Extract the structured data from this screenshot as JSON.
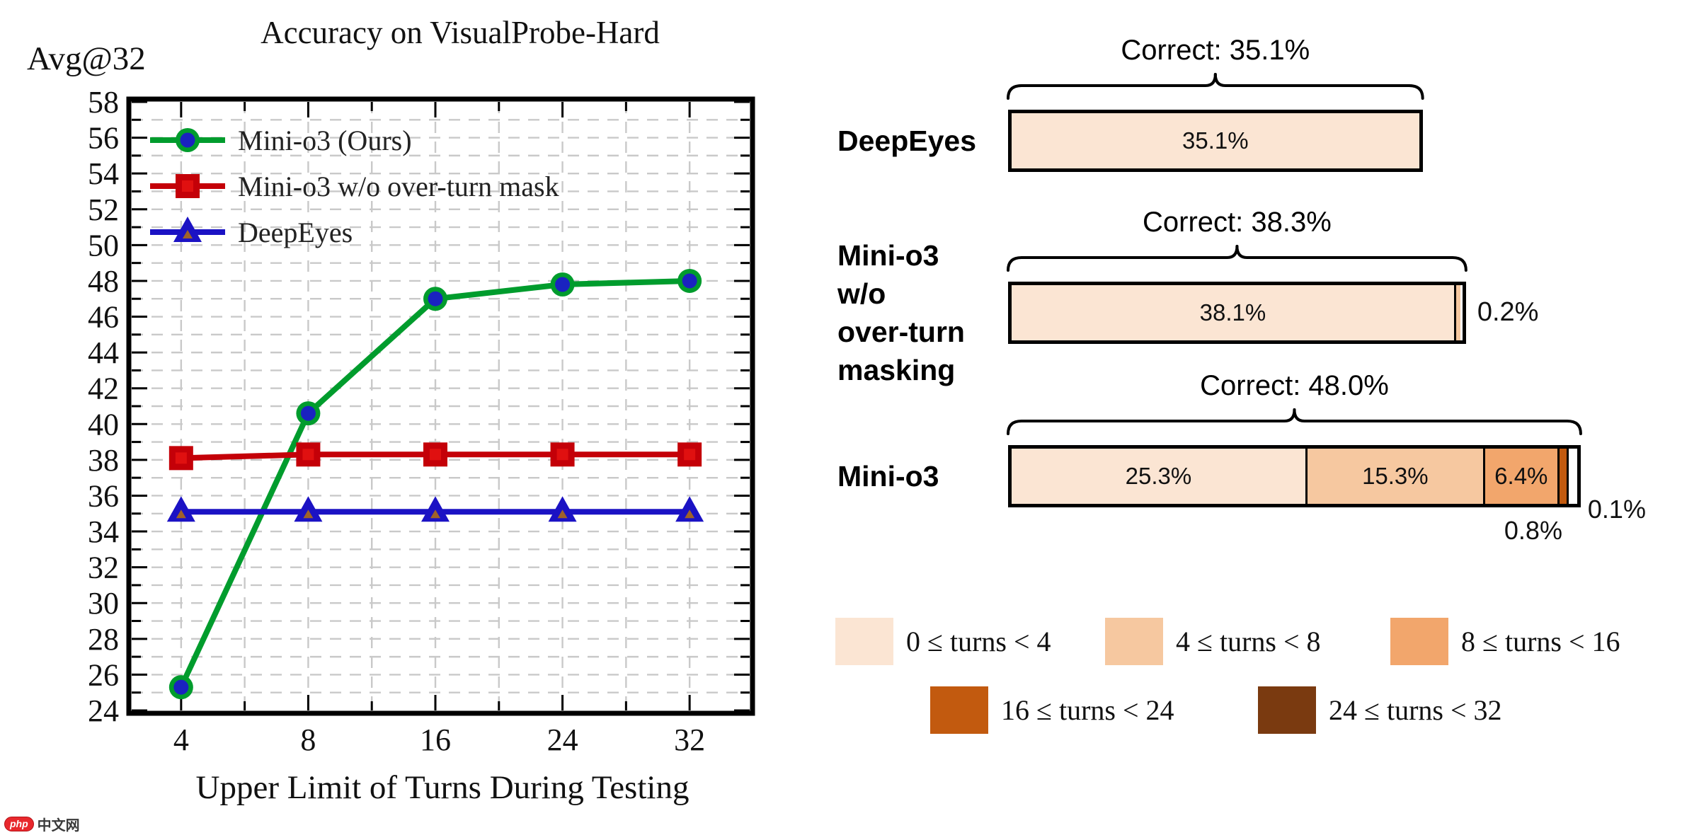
{
  "watermark": {
    "badge": "php",
    "text": "中文网"
  },
  "chart_data": [
    {
      "type": "line",
      "title": "Accuracy on VisualProbe-Hard",
      "ylabel": "Avg@32",
      "xlabel": "Upper Limit of Turns During Testing",
      "x_categories": [
        "4",
        "8",
        "16",
        "24",
        "32"
      ],
      "ylim": [
        24,
        58
      ],
      "ytick_step": 2,
      "grid": true,
      "legend_position": "upper left",
      "series": [
        {
          "name": "Mini-o3 (Ours)",
          "marker": "circle",
          "color": "#009c2d",
          "marker_fill": "#1a22c0",
          "values": [
            25.3,
            40.6,
            47.0,
            47.8,
            48.0
          ]
        },
        {
          "name": "Mini-o3 w/o over-turn mask",
          "marker": "square",
          "color": "#c40008",
          "marker_fill": "#e01010",
          "values": [
            38.1,
            38.3,
            38.3,
            38.3,
            38.3
          ]
        },
        {
          "name": "DeepEyes",
          "marker": "triangle",
          "color": "#1b12c4",
          "marker_fill": "#a0622a",
          "values": [
            35.1,
            35.1,
            35.1,
            35.1,
            35.1
          ]
        }
      ]
    },
    {
      "type": "bar",
      "orientation": "horizontal",
      "unit": "%",
      "bins": [
        {
          "label": "0 ≤ turns < 4",
          "color": "#fbe5d3"
        },
        {
          "label": "4 ≤ turns < 8",
          "color": "#f6c8a0"
        },
        {
          "label": "8 ≤ turns < 16",
          "color": "#f2a express"
        },
        {
          "label": "16 ≤ turns < 24",
          "color": "#c25a0f"
        },
        {
          "label": "24 ≤ turns < 32",
          "color": "#7a3a10"
        }
      ],
      "rows": [
        {
          "label_lines": [
            "DeepEyes"
          ],
          "correct_label": "Correct: 35.1%",
          "correct_total": 35.1,
          "segments": [
            {
              "bin": 0,
              "value": 35.1,
              "label": "35.1%"
            }
          ]
        },
        {
          "label_lines": [
            "Mini-o3",
            "w/o",
            "over-turn",
            "masking"
          ],
          "correct_label": "Correct: 38.3%",
          "correct_total": 38.3,
          "segments": [
            {
              "bin": 0,
              "value": 38.1,
              "label": "38.1%"
            },
            {
              "bin": 1,
              "value": 0.2,
              "outside_label": "0.2%"
            }
          ]
        },
        {
          "label_lines": [
            "Mini-o3"
          ],
          "correct_label": "Correct: 48.0%",
          "correct_total": 48.0,
          "segments": [
            {
              "bin": 0,
              "value": 25.3,
              "label": "25.3%"
            },
            {
              "bin": 1,
              "value": 15.3,
              "label": "15.3%"
            },
            {
              "bin": 2,
              "value": 6.4,
              "label": "6.4%"
            },
            {
              "bin": 3,
              "value": 0.8,
              "outside_label": "0.8%"
            },
            {
              "bin": 4,
              "value": 0.1,
              "outside_label": "0.1%"
            }
          ]
        }
      ]
    }
  ]
}
